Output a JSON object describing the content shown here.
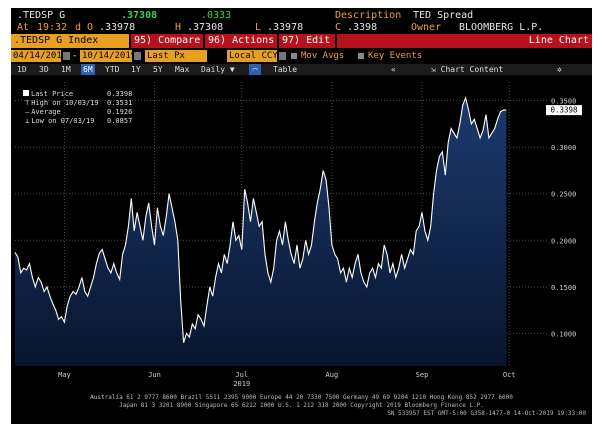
{
  "header": {
    "ticker": ".TEDSP G",
    "last": ".37308",
    "change": ".0333",
    "desc_label": "Description",
    "desc_value": "TED Spread",
    "at_label": "At",
    "time": "19:32",
    "d_label": "d",
    "open_label": "O",
    "open_value": ".33978",
    "high_label": "H",
    "high_value": ".37308",
    "low_label": "L",
    "low_value": ".33978",
    "close_label": "C",
    "close_value": ".3398",
    "owner_label": "Owner",
    "owner_value": "BLOOMBERG L.P."
  },
  "menu": {
    "index": ".TEDSP G Index",
    "compare": "95) Compare",
    "actions": "96) Actions",
    "edit": "97) Edit",
    "view": "Line Chart"
  },
  "inputs": {
    "start_date": "04/14/2019",
    "end_date": "10/14/2019",
    "field": "Last Px",
    "currency": "Local CCY",
    "mov_avgs": "Mov Avgs",
    "key_events": "Key Events"
  },
  "toolbar": {
    "ranges": [
      "1D",
      "3D",
      "1M",
      "6M",
      "YTD",
      "1Y",
      "5Y",
      "Max"
    ],
    "active_range": "6M",
    "period": "Daily",
    "table": "Table",
    "chart_content": "Chart Content"
  },
  "legend": {
    "last_label": "Last Price",
    "last_value": "0.3398",
    "high_label": "High on 10/03/19",
    "high_value": "0.3531",
    "avg_label": "Average",
    "avg_value": "0.1926",
    "low_label": "Low on 07/03/19",
    "low_value": "0.0857"
  },
  "footer": {
    "line1": "Australia 61 2 9777 8600 Brazil 5511 2395 9000 Europe 44 20 7330 7500 Germany 49 69 9204 1210 Hong Kong 852 2977 6000",
    "line2": "Japan 81 3 3201 8900         Singapore 65 6212 1000        U.S. 1 212 318 2000              Copyright 2019 Bloomberg Finance L.P.",
    "line3": "SN 533957 EST  GMT-5:00 G358-1477-0 14-Oct-2019 19:33:00"
  },
  "colors": {
    "line": "#ffffff",
    "fill_top": "#1c3a6e",
    "fill_bottom": "#08152e",
    "accent_orange": "#f0a030",
    "accent_green": "#39d353",
    "menu_red": "#b5121b"
  },
  "chart_data": {
    "type": "area",
    "title": "",
    "xlabel": "",
    "ylabel": "",
    "x_ticks": [
      "May",
      "Jun",
      "Jul",
      "Aug",
      "Sep",
      "Oct"
    ],
    "x_tick_days": [
      17,
      48,
      78,
      109,
      140,
      170
    ],
    "year_label": "2019",
    "y_ticks": [
      0.1,
      0.15,
      0.2,
      0.25,
      0.3,
      0.35
    ],
    "y_tick_labels": [
      "0.1000",
      "0.1500",
      "0.2000",
      "0.2500",
      "0.3000",
      "0.3500"
    ],
    "ylim": [
      0.065,
      0.37
    ],
    "xlim": [
      0,
      183
    ],
    "grid": true,
    "last_value_label": "0.3398",
    "series": [
      {
        "name": "Last Price",
        "points": [
          [
            0,
            0.187
          ],
          [
            1,
            0.182
          ],
          [
            2,
            0.165
          ],
          [
            3,
            0.17
          ],
          [
            4,
            0.168
          ],
          [
            5,
            0.175
          ],
          [
            6,
            0.16
          ],
          [
            7,
            0.15
          ],
          [
            8,
            0.16
          ],
          [
            9,
            0.155
          ],
          [
            10,
            0.145
          ],
          [
            11,
            0.15
          ],
          [
            12,
            0.14
          ],
          [
            13,
            0.132
          ],
          [
            14,
            0.125
          ],
          [
            15,
            0.115
          ],
          [
            16,
            0.118
          ],
          [
            17,
            0.112
          ],
          [
            18,
            0.13
          ],
          [
            19,
            0.14
          ],
          [
            20,
            0.145
          ],
          [
            21,
            0.142
          ],
          [
            22,
            0.15
          ],
          [
            23,
            0.16
          ],
          [
            24,
            0.145
          ],
          [
            25,
            0.14
          ],
          [
            26,
            0.15
          ],
          [
            27,
            0.16
          ],
          [
            28,
            0.175
          ],
          [
            29,
            0.186
          ],
          [
            30,
            0.19
          ],
          [
            31,
            0.18
          ],
          [
            32,
            0.17
          ],
          [
            33,
            0.165
          ],
          [
            34,
            0.175
          ],
          [
            35,
            0.165
          ],
          [
            36,
            0.158
          ],
          [
            37,
            0.185
          ],
          [
            38,
            0.195
          ],
          [
            39,
            0.215
          ],
          [
            40,
            0.245
          ],
          [
            41,
            0.21
          ],
          [
            42,
            0.23
          ],
          [
            43,
            0.215
          ],
          [
            44,
            0.2
          ],
          [
            45,
            0.225
          ],
          [
            46,
            0.24
          ],
          [
            47,
            0.215
          ],
          [
            48,
            0.195
          ],
          [
            49,
            0.235
          ],
          [
            50,
            0.215
          ],
          [
            51,
            0.205
          ],
          [
            52,
            0.225
          ],
          [
            53,
            0.25
          ],
          [
            54,
            0.235
          ],
          [
            55,
            0.22
          ],
          [
            56,
            0.2
          ],
          [
            57,
            0.135
          ],
          [
            58,
            0.09
          ],
          [
            59,
            0.1
          ],
          [
            60,
            0.096
          ],
          [
            61,
            0.11
          ],
          [
            62,
            0.105
          ],
          [
            63,
            0.12
          ],
          [
            64,
            0.115
          ],
          [
            65,
            0.108
          ],
          [
            66,
            0.13
          ],
          [
            67,
            0.15
          ],
          [
            68,
            0.14
          ],
          [
            69,
            0.16
          ],
          [
            70,
            0.175
          ],
          [
            71,
            0.165
          ],
          [
            72,
            0.185
          ],
          [
            73,
            0.175
          ],
          [
            74,
            0.195
          ],
          [
            75,
            0.22
          ],
          [
            76,
            0.2
          ],
          [
            77,
            0.205
          ],
          [
            78,
            0.19
          ],
          [
            79,
            0.255
          ],
          [
            80,
            0.24
          ],
          [
            81,
            0.22
          ],
          [
            82,
            0.245
          ],
          [
            83,
            0.23
          ],
          [
            84,
            0.215
          ],
          [
            85,
            0.22
          ],
          [
            86,
            0.185
          ],
          [
            87,
            0.165
          ],
          [
            88,
            0.155
          ],
          [
            89,
            0.17
          ],
          [
            90,
            0.2
          ],
          [
            91,
            0.21
          ],
          [
            92,
            0.195
          ],
          [
            93,
            0.22
          ],
          [
            94,
            0.2
          ],
          [
            95,
            0.185
          ],
          [
            96,
            0.175
          ],
          [
            97,
            0.195
          ],
          [
            98,
            0.17
          ],
          [
            99,
            0.18
          ],
          [
            100,
            0.2
          ],
          [
            101,
            0.185
          ],
          [
            102,
            0.195
          ],
          [
            103,
            0.22
          ],
          [
            104,
            0.24
          ],
          [
            105,
            0.255
          ],
          [
            106,
            0.275
          ],
          [
            107,
            0.265
          ],
          [
            108,
            0.235
          ],
          [
            109,
            0.195
          ],
          [
            110,
            0.185
          ],
          [
            111,
            0.18
          ],
          [
            112,
            0.165
          ],
          [
            113,
            0.17
          ],
          [
            114,
            0.155
          ],
          [
            115,
            0.17
          ],
          [
            116,
            0.16
          ],
          [
            117,
            0.175
          ],
          [
            118,
            0.185
          ],
          [
            119,
            0.165
          ],
          [
            120,
            0.155
          ],
          [
            121,
            0.15
          ],
          [
            122,
            0.165
          ],
          [
            123,
            0.17
          ],
          [
            124,
            0.16
          ],
          [
            125,
            0.175
          ],
          [
            126,
            0.17
          ],
          [
            127,
            0.195
          ],
          [
            128,
            0.185
          ],
          [
            129,
            0.165
          ],
          [
            130,
            0.175
          ],
          [
            131,
            0.16
          ],
          [
            132,
            0.17
          ],
          [
            133,
            0.185
          ],
          [
            134,
            0.17
          ],
          [
            135,
            0.18
          ],
          [
            136,
            0.19
          ],
          [
            137,
            0.185
          ],
          [
            138,
            0.21
          ],
          [
            139,
            0.215
          ],
          [
            140,
            0.23
          ],
          [
            141,
            0.21
          ],
          [
            142,
            0.2
          ],
          [
            143,
            0.215
          ],
          [
            144,
            0.25
          ],
          [
            145,
            0.275
          ],
          [
            146,
            0.29
          ],
          [
            147,
            0.295
          ],
          [
            148,
            0.27
          ],
          [
            149,
            0.305
          ],
          [
            150,
            0.32
          ],
          [
            151,
            0.315
          ],
          [
            152,
            0.31
          ],
          [
            153,
            0.325
          ],
          [
            154,
            0.345
          ],
          [
            155,
            0.353
          ],
          [
            156,
            0.34
          ],
          [
            157,
            0.325
          ],
          [
            158,
            0.33
          ],
          [
            159,
            0.32
          ],
          [
            160,
            0.31
          ],
          [
            161,
            0.318
          ],
          [
            162,
            0.335
          ],
          [
            163,
            0.31
          ],
          [
            164,
            0.315
          ],
          [
            165,
            0.32
          ],
          [
            166,
            0.33
          ],
          [
            167,
            0.338
          ],
          [
            168,
            0.34
          ],
          [
            169,
            0.3398
          ]
        ]
      }
    ]
  }
}
